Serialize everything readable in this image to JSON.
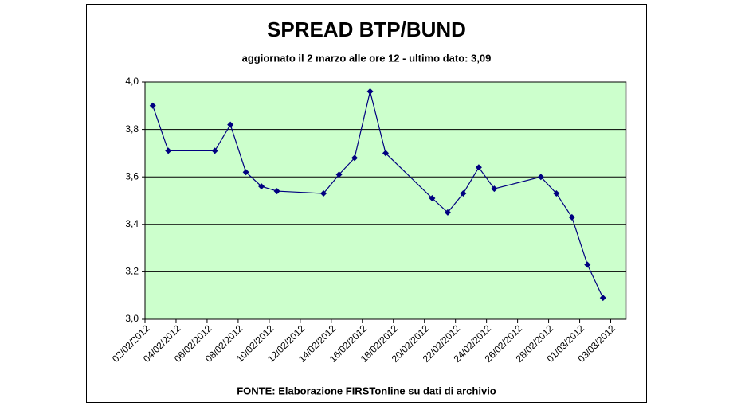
{
  "chart_data": {
    "type": "line",
    "title": "SPREAD BTP/BUND",
    "subtitle": "aggiornato il 2 marzo alle ore 12 - ultimo dato: 3,09",
    "source": "FONTE: Elaborazione FIRSTonline su dati di archivio",
    "x": [
      "02/02/2012",
      "03/02/2012",
      "06/02/2012",
      "07/02/2012",
      "08/02/2012",
      "09/02/2012",
      "10/02/2012",
      "13/02/2012",
      "14/02/2012",
      "15/02/2012",
      "16/02/2012",
      "17/02/2012",
      "20/02/2012",
      "21/02/2012",
      "22/02/2012",
      "23/02/2012",
      "24/02/2012",
      "27/02/2012",
      "28/02/2012",
      "29/02/2012",
      "01/03/2012",
      "02/03/2012"
    ],
    "values": [
      3.9,
      3.71,
      3.71,
      3.82,
      3.62,
      3.56,
      3.54,
      3.53,
      3.61,
      3.68,
      3.96,
      3.7,
      3.51,
      3.45,
      3.53,
      3.64,
      3.55,
      3.6,
      3.53,
      3.43,
      3.23,
      3.09
    ],
    "color": "#000080",
    "xlim": [
      "02/02/2012",
      "04/03/2012"
    ],
    "xticks": [
      "02/02/2012",
      "04/02/2012",
      "06/02/2012",
      "08/02/2012",
      "10/02/2012",
      "12/02/2012",
      "14/02/2012",
      "16/02/2012",
      "18/02/2012",
      "20/02/2012",
      "22/02/2012",
      "24/02/2012",
      "26/02/2012",
      "28/02/2012",
      "01/03/2012",
      "03/03/2012"
    ],
    "ylim": [
      3,
      4
    ],
    "yticks": [
      {
        "value": 3,
        "label": "3,0"
      },
      {
        "value": 3.2,
        "label": "3,2"
      },
      {
        "value": 3.4,
        "label": "3,4"
      },
      {
        "value": 3.6,
        "label": "3,6"
      },
      {
        "value": 3.8,
        "label": "3,8"
      },
      {
        "value": 4,
        "label": "4,0"
      }
    ],
    "grid": true
  }
}
